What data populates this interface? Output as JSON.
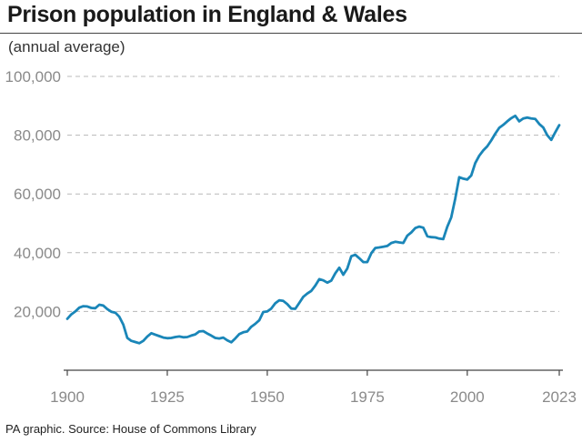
{
  "header": {
    "title": "Prison population in England & Wales",
    "subtitle": "(annual average)"
  },
  "footer": {
    "source": "PA graphic. Source: House of Commons Library"
  },
  "colors": {
    "line": "#1a86b8",
    "grid": "#b8b8b8",
    "axis": "#444444",
    "tick_text": "#8a8a8a"
  },
  "chart_data": {
    "type": "line",
    "title": "Prison population in England & Wales",
    "subtitle": "(annual average)",
    "xlabel": "",
    "ylabel": "",
    "xlim": [
      1900,
      2023
    ],
    "ylim": [
      0,
      100000
    ],
    "x_ticks": [
      "1900",
      "1925",
      "1950",
      "1975",
      "2000",
      "2023"
    ],
    "x_tick_values": [
      1900,
      1925,
      1950,
      1975,
      2000,
      2023
    ],
    "y_ticks": [
      "20,000",
      "40,000",
      "60,000",
      "80,000",
      "100,000"
    ],
    "y_tick_values": [
      20000,
      40000,
      60000,
      80000,
      100000
    ],
    "grid": "horizontal dashed",
    "legend": "none",
    "series": [
      {
        "x": [
          1900,
          1901,
          1902,
          1903,
          1904,
          1905,
          1906,
          1907,
          1908,
          1909,
          1910,
          1911,
          1912,
          1913,
          1914,
          1915,
          1916,
          1917,
          1918,
          1919,
          1920,
          1921,
          1922,
          1923,
          1924,
          1925,
          1926,
          1927,
          1928,
          1929,
          1930,
          1931,
          1932,
          1933,
          1934,
          1935,
          1936,
          1937,
          1938,
          1939,
          1940,
          1941,
          1942,
          1943,
          1944,
          1945,
          1946,
          1947,
          1948,
          1949,
          1950,
          1951,
          1952,
          1953,
          1954,
          1955,
          1956,
          1957,
          1958,
          1959,
          1960,
          1961,
          1962,
          1963,
          1964,
          1965,
          1966,
          1967,
          1968,
          1969,
          1970,
          1971,
          1972,
          1973,
          1974,
          1975,
          1976,
          1977,
          1978,
          1979,
          1980,
          1981,
          1982,
          1983,
          1984,
          1985,
          1986,
          1987,
          1988,
          1989,
          1990,
          1991,
          1992,
          1993,
          1994,
          1995,
          1996,
          1997,
          1998,
          1999,
          2000,
          2001,
          2002,
          2003,
          2004,
          2005,
          2006,
          2007,
          2008,
          2009,
          2010,
          2011,
          2012,
          2013,
          2014,
          2015,
          2016,
          2017,
          2018,
          2019,
          2020,
          2021,
          2022,
          2023
        ],
        "values": [
          17500,
          19000,
          20000,
          21300,
          21800,
          21700,
          21200,
          21100,
          22300,
          22000,
          20800,
          19900,
          19600,
          18200,
          15500,
          11000,
          10000,
          9600,
          9200,
          10000,
          11500,
          12600,
          12100,
          11600,
          11100,
          10900,
          11000,
          11300,
          11500,
          11200,
          11300,
          11800,
          12200,
          13200,
          13300,
          12500,
          11800,
          11000,
          10800,
          11100,
          10200,
          9500,
          10800,
          12300,
          12900,
          13200,
          14800,
          15800,
          17000,
          19800,
          20000,
          21000,
          22800,
          23800,
          23600,
          22500,
          21000,
          20900,
          22900,
          25000,
          26100,
          27000,
          28800,
          31000,
          30600,
          29800,
          30500,
          33000,
          34900,
          32500,
          34600,
          38800,
          39300,
          38100,
          36800,
          36800,
          39800,
          41600,
          41800,
          42000,
          42300,
          43300,
          43700,
          43500,
          43300,
          45800,
          46900,
          48400,
          48900,
          48500,
          45600,
          45300,
          45200,
          44800,
          44600,
          48800,
          52000,
          58400,
          65700,
          65200,
          64900,
          66300,
          70500,
          73000,
          74800,
          76200,
          78200,
          80500,
          82500,
          83500,
          84700,
          85800,
          86600,
          84700,
          85700,
          86000,
          85700,
          85500,
          83800,
          82600,
          80000,
          78400,
          81000,
          83400
        ]
      }
    ]
  }
}
